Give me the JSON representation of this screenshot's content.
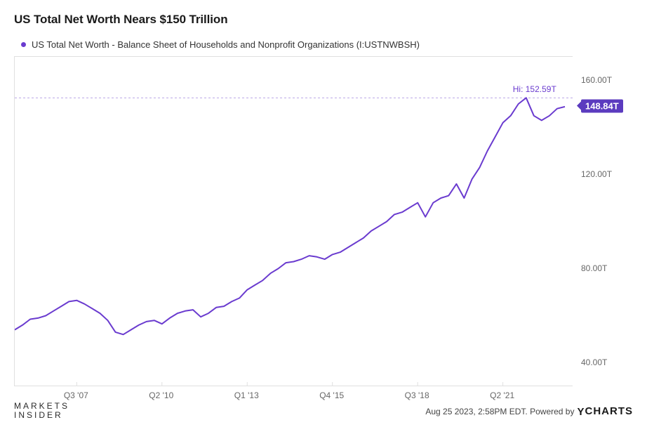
{
  "title": "US Total Net Worth Nears $150 Trillion",
  "legend": {
    "label": "US Total Net Worth - Balance Sheet of Households and Nonprofit Organizations (I:USTNWBSH)",
    "dot_color": "#6a3bcf"
  },
  "chart": {
    "type": "line",
    "line_color": "#6a3bcf",
    "line_width": 2,
    "background_color": "#ffffff",
    "border_color": "#e0e0e0",
    "ref_line_color": "#b9a6e8",
    "ref_line_dash": "3,3",
    "hi_label": "Hi: 152.59T",
    "hi_value": 152.59,
    "last_value_label": "148.84T",
    "last_value": 148.84,
    "x": {
      "min": 2005.5,
      "max": 2023.5,
      "ticks": [
        {
          "pos": 2007.5,
          "label": "Q3 '07"
        },
        {
          "pos": 2010.25,
          "label": "Q2 '10"
        },
        {
          "pos": 2013.0,
          "label": "Q1 '13"
        },
        {
          "pos": 2015.75,
          "label": "Q4 '15"
        },
        {
          "pos": 2018.5,
          "label": "Q3 '18"
        },
        {
          "pos": 2021.25,
          "label": "Q2 '21"
        }
      ],
      "label_fontsize": 12
    },
    "y": {
      "min": 30,
      "max": 170,
      "ticks": [
        {
          "pos": 40,
          "label": "40.00T"
        },
        {
          "pos": 80,
          "label": "80.00T"
        },
        {
          "pos": 120,
          "label": "120.00T"
        },
        {
          "pos": 160,
          "label": "160.00T"
        }
      ],
      "label_fontsize": 12
    },
    "series": [
      {
        "x": 2005.5,
        "y": 54.0
      },
      {
        "x": 2005.75,
        "y": 56.0
      },
      {
        "x": 2006.0,
        "y": 58.5
      },
      {
        "x": 2006.25,
        "y": 59.0
      },
      {
        "x": 2006.5,
        "y": 60.0
      },
      {
        "x": 2006.75,
        "y": 62.0
      },
      {
        "x": 2007.0,
        "y": 64.0
      },
      {
        "x": 2007.25,
        "y": 66.0
      },
      {
        "x": 2007.5,
        "y": 66.5
      },
      {
        "x": 2007.75,
        "y": 65.0
      },
      {
        "x": 2008.0,
        "y": 63.0
      },
      {
        "x": 2008.25,
        "y": 61.0
      },
      {
        "x": 2008.5,
        "y": 58.0
      },
      {
        "x": 2008.75,
        "y": 53.0
      },
      {
        "x": 2009.0,
        "y": 52.0
      },
      {
        "x": 2009.25,
        "y": 54.0
      },
      {
        "x": 2009.5,
        "y": 56.0
      },
      {
        "x": 2009.75,
        "y": 57.5
      },
      {
        "x": 2010.0,
        "y": 58.0
      },
      {
        "x": 2010.25,
        "y": 56.5
      },
      {
        "x": 2010.5,
        "y": 59.0
      },
      {
        "x": 2010.75,
        "y": 61.0
      },
      {
        "x": 2011.0,
        "y": 62.0
      },
      {
        "x": 2011.25,
        "y": 62.5
      },
      {
        "x": 2011.5,
        "y": 59.5
      },
      {
        "x": 2011.75,
        "y": 61.0
      },
      {
        "x": 2012.0,
        "y": 63.5
      },
      {
        "x": 2012.25,
        "y": 64.0
      },
      {
        "x": 2012.5,
        "y": 66.0
      },
      {
        "x": 2012.75,
        "y": 67.5
      },
      {
        "x": 2013.0,
        "y": 71.0
      },
      {
        "x": 2013.25,
        "y": 73.0
      },
      {
        "x": 2013.5,
        "y": 75.0
      },
      {
        "x": 2013.75,
        "y": 78.0
      },
      {
        "x": 2014.0,
        "y": 80.0
      },
      {
        "x": 2014.25,
        "y": 82.5
      },
      {
        "x": 2014.5,
        "y": 83.0
      },
      {
        "x": 2014.75,
        "y": 84.0
      },
      {
        "x": 2015.0,
        "y": 85.5
      },
      {
        "x": 2015.25,
        "y": 85.0
      },
      {
        "x": 2015.5,
        "y": 84.0
      },
      {
        "x": 2015.75,
        "y": 86.0
      },
      {
        "x": 2016.0,
        "y": 87.0
      },
      {
        "x": 2016.25,
        "y": 89.0
      },
      {
        "x": 2016.5,
        "y": 91.0
      },
      {
        "x": 2016.75,
        "y": 93.0
      },
      {
        "x": 2017.0,
        "y": 96.0
      },
      {
        "x": 2017.25,
        "y": 98.0
      },
      {
        "x": 2017.5,
        "y": 100.0
      },
      {
        "x": 2017.75,
        "y": 103.0
      },
      {
        "x": 2018.0,
        "y": 104.0
      },
      {
        "x": 2018.25,
        "y": 106.0
      },
      {
        "x": 2018.5,
        "y": 108.0
      },
      {
        "x": 2018.75,
        "y": 102.0
      },
      {
        "x": 2019.0,
        "y": 108.0
      },
      {
        "x": 2019.25,
        "y": 110.0
      },
      {
        "x": 2019.5,
        "y": 111.0
      },
      {
        "x": 2019.75,
        "y": 116.0
      },
      {
        "x": 2020.0,
        "y": 110.0
      },
      {
        "x": 2020.25,
        "y": 118.0
      },
      {
        "x": 2020.5,
        "y": 123.0
      },
      {
        "x": 2020.75,
        "y": 130.0
      },
      {
        "x": 2021.0,
        "y": 136.0
      },
      {
        "x": 2021.25,
        "y": 142.0
      },
      {
        "x": 2021.5,
        "y": 145.0
      },
      {
        "x": 2021.75,
        "y": 150.0
      },
      {
        "x": 2022.0,
        "y": 152.59
      },
      {
        "x": 2022.25,
        "y": 145.0
      },
      {
        "x": 2022.5,
        "y": 143.0
      },
      {
        "x": 2022.75,
        "y": 145.0
      },
      {
        "x": 2023.0,
        "y": 148.0
      },
      {
        "x": 2023.25,
        "y": 148.84
      }
    ]
  },
  "footer": {
    "brand_top": "MARKETS",
    "brand_bottom": "INSIDER",
    "timestamp": "Aug 25 2023, 2:58PM EDT. Powered by",
    "provider": "CHARTS"
  }
}
